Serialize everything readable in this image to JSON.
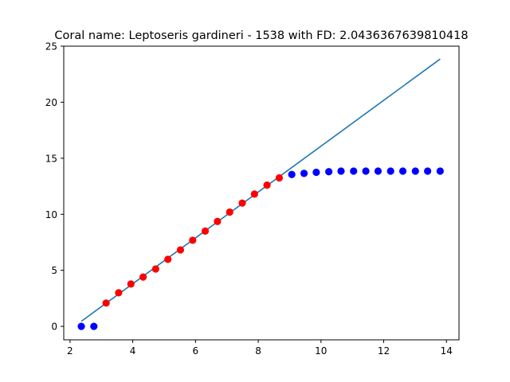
{
  "chart_data": {
    "type": "scatter",
    "title": "Coral name: Leptoseris gardineri - 1538 with FD: 2.0436367639810418",
    "xlabel": "",
    "ylabel": "",
    "xlim": [
      1.8,
      14.4
    ],
    "ylim": [
      -1.2,
      25.0
    ],
    "xticks": [
      2,
      4,
      6,
      8,
      10,
      12,
      14
    ],
    "yticks": [
      0,
      5,
      10,
      15,
      20,
      25
    ],
    "grid": false,
    "colors": {
      "fit": "#1f77b4",
      "fit_points": "#ff0000",
      "other_points": "#0000ff"
    },
    "series": [
      {
        "kind": "line",
        "color_key": "fit",
        "x": [
          2.36,
          13.8
        ],
        "y": [
          0.45,
          23.85
        ]
      },
      {
        "kind": "scatter",
        "color_key": "other_points",
        "x": [
          2.36,
          2.76
        ],
        "y": [
          0.0,
          0.0
        ]
      },
      {
        "kind": "scatter",
        "color_key": "fit_points",
        "x": [
          3.15,
          3.55,
          3.94,
          4.33,
          4.73,
          5.12,
          5.52,
          5.91,
          6.31,
          6.7,
          7.09,
          7.49,
          7.88,
          8.28,
          8.67
        ],
        "y": [
          2.08,
          3.0,
          3.78,
          4.4,
          5.12,
          5.98,
          6.82,
          7.68,
          8.5,
          9.36,
          10.2,
          11.0,
          11.8,
          12.6,
          13.25
        ]
      },
      {
        "kind": "scatter",
        "color_key": "other_points",
        "x": [
          9.07,
          9.46,
          9.85,
          10.25,
          10.64,
          11.04,
          11.43,
          11.82,
          12.22,
          12.61,
          13.01,
          13.4,
          13.8
        ],
        "y": [
          13.55,
          13.65,
          13.75,
          13.8,
          13.85,
          13.85,
          13.85,
          13.85,
          13.85,
          13.85,
          13.85,
          13.85,
          13.85
        ]
      }
    ]
  }
}
